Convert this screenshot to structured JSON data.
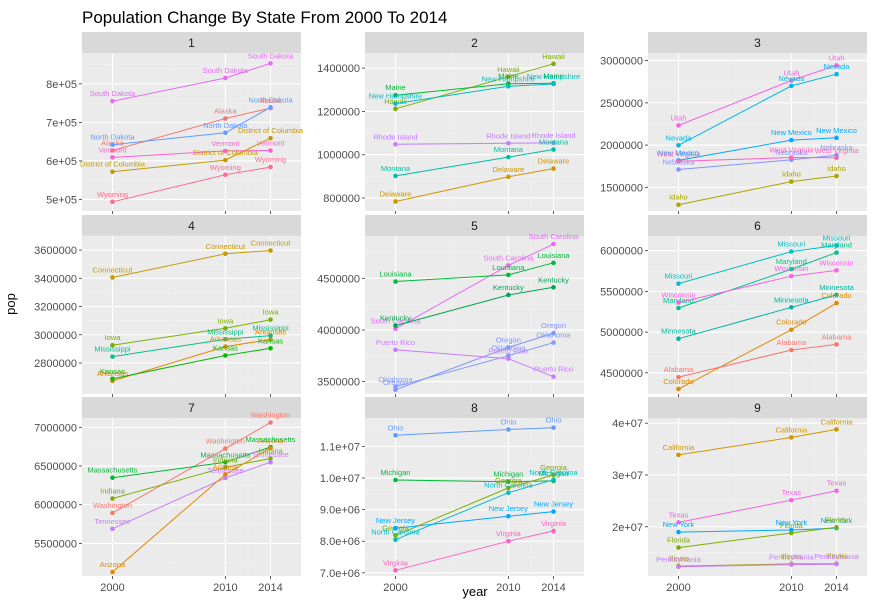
{
  "title": "Population Change By State From 2000 To 2014",
  "xlabel": "year",
  "ylabel": "pop",
  "colors": {
    "panel_bg": "#ebebeb",
    "strip_bg": "#d9d9d9",
    "grid_major": "#ffffff",
    "grid_minor": "#f2f2f2"
  },
  "chart_data": {
    "type": "line",
    "x_ticks": [
      2000,
      2010,
      2014
    ],
    "x_tick_labels": [
      "2000",
      "2010",
      "2014"
    ],
    "panels": [
      {
        "strip": "1",
        "ylim": [
          470000,
          880000
        ],
        "y_ticks": [
          500000,
          600000,
          700000,
          800000
        ],
        "y_tick_labels": [
          "5e+05",
          "6e+05",
          "7e+05",
          "8e+05"
        ],
        "series": [
          {
            "name": "South Dakota",
            "color": "#e76bf3",
            "values": [
              755000,
              815000,
              853000
            ]
          },
          {
            "name": "Alaska",
            "color": "#f8766d",
            "values": [
              627000,
              710000,
              737000
            ]
          },
          {
            "name": "North Dakota",
            "color": "#619cff",
            "values": [
              642000,
              673000,
              739000
            ]
          },
          {
            "name": "Vermont",
            "color": "#fd61d1",
            "values": [
              609000,
              626000,
              627000
            ]
          },
          {
            "name": "District of Columbia",
            "color": "#c49a00",
            "values": [
              572000,
              602000,
              659000
            ]
          },
          {
            "name": "Wyoming",
            "color": "#ff6c91",
            "values": [
              494000,
              564000,
              584000
            ]
          }
        ]
      },
      {
        "strip": "2",
        "ylim": [
          740000,
          1470000
        ],
        "y_ticks": [
          800000,
          1000000,
          1200000,
          1400000
        ],
        "y_tick_labels": [
          "800000",
          "1000000",
          "1200000",
          "1400000"
        ],
        "series": [
          {
            "name": "Hawaii",
            "color": "#7cae00",
            "values": [
              1212000,
              1360000,
              1420000
            ]
          },
          {
            "name": "Maine",
            "color": "#00ba38",
            "values": [
              1275000,
              1328000,
              1330000
            ]
          },
          {
            "name": "New Hampshire",
            "color": "#00bfc4",
            "values": [
              1236000,
              1316000,
              1327000
            ]
          },
          {
            "name": "Rhode Island",
            "color": "#c77cff",
            "values": [
              1048000,
              1053000,
              1055000
            ]
          },
          {
            "name": "Montana",
            "color": "#00bfa5",
            "values": [
              902000,
              989000,
              1024000
            ]
          },
          {
            "name": "Delaware",
            "color": "#cd9600",
            "values": [
              784000,
              898000,
              936000
            ]
          }
        ]
      },
      {
        "strip": "3",
        "ylim": [
          1220000,
          3090000
        ],
        "y_ticks": [
          1500000,
          2000000,
          2500000,
          3000000
        ],
        "y_tick_labels": [
          "1500000",
          "2000000",
          "2500000",
          "3000000"
        ],
        "series": [
          {
            "name": "Utah",
            "color": "#f564e3",
            "values": [
              2233000,
              2764000,
              2943000
            ]
          },
          {
            "name": "Nevada",
            "color": "#00b8e7",
            "values": [
              1998000,
              2701000,
              2839000
            ]
          },
          {
            "name": "New Mexico",
            "color": "#00a9ff",
            "values": [
              1819000,
              2059000,
              2086000
            ]
          },
          {
            "name": "Nebraska",
            "color": "#8494ff",
            "values": [
              1711000,
              1826000,
              1881000
            ]
          },
          {
            "name": "West Virginia",
            "color": "#ff61c3",
            "values": [
              1808000,
              1853000,
              1850000
            ]
          },
          {
            "name": "Idaho",
            "color": "#aba300",
            "values": [
              1294000,
              1568000,
              1634000
            ]
          }
        ]
      },
      {
        "strip": "4",
        "ylim": [
          2580000,
          3700000
        ],
        "y_ticks": [
          2800000,
          3000000,
          3200000,
          3400000,
          3600000
        ],
        "y_tick_labels": [
          "2800000",
          "3000000",
          "3200000",
          "3400000",
          "3600000"
        ],
        "series": [
          {
            "name": "Connecticut",
            "color": "#c49a00",
            "values": [
              3406000,
              3574000,
              3597000
            ]
          },
          {
            "name": "Iowa",
            "color": "#7cae00",
            "values": [
              2926000,
              3046000,
              3107000
            ]
          },
          {
            "name": "Mississippi",
            "color": "#00c08b",
            "values": [
              2845000,
              2968000,
              2994000
            ]
          },
          {
            "name": "Arkansas",
            "color": "#e58700",
            "values": [
              2673000,
              2916000,
              2966000
            ]
          },
          {
            "name": "Kansas",
            "color": "#0cb702",
            "values": [
              2688000,
              2853000,
              2904000
            ]
          }
        ]
      },
      {
        "strip": "5",
        "ylim": [
          3380000,
          4910000
        ],
        "y_ticks": [
          3500000,
          4000000,
          4500000
        ],
        "y_tick_labels": [
          "3500000",
          "4000000",
          "4500000"
        ],
        "series": [
          {
            "name": "South Carolina",
            "color": "#e76bf3",
            "values": [
              4012000,
              4625000,
              4832000
            ]
          },
          {
            "name": "Louisiana",
            "color": "#00ba38",
            "values": [
              4469000,
              4533000,
              4650000
            ]
          },
          {
            "name": "Kentucky",
            "color": "#00a651",
            "values": [
              4042000,
              4339000,
              4413000
            ]
          },
          {
            "name": "Oregon",
            "color": "#8494ff",
            "values": [
              3421000,
              3831000,
              3970000
            ]
          },
          {
            "name": "Oklahoma",
            "color": "#7f9cff",
            "values": [
              3450000,
              3751000,
              3878000
            ]
          },
          {
            "name": "Puerto Rico",
            "color": "#c77cff",
            "values": [
              3808000,
              3722000,
              3548000
            ]
          }
        ]
      },
      {
        "strip": "6",
        "ylim": [
          4240000,
          6180000
        ],
        "y_ticks": [
          4500000,
          5000000,
          5500000,
          6000000
        ],
        "y_tick_labels": [
          "4500000",
          "5000000",
          "5500000",
          "6000000"
        ],
        "series": [
          {
            "name": "Maryland",
            "color": "#00c08b",
            "values": [
              5296000,
              5774000,
              5976000
            ]
          },
          {
            "name": "Missouri",
            "color": "#00bfc4",
            "values": [
              5595000,
              5989000,
              6064000
            ]
          },
          {
            "name": "Wisconsin",
            "color": "#f564e3",
            "values": [
              5364000,
              5687000,
              5758000
            ]
          },
          {
            "name": "Minnesota",
            "color": "#00b4a0",
            "values": [
              4919000,
              5304000,
              5457000
            ]
          },
          {
            "name": "Colorado",
            "color": "#de8c00",
            "values": [
              4302000,
              5029000,
              5356000
            ]
          },
          {
            "name": "Alabama",
            "color": "#f8766d",
            "values": [
              4447000,
              4780000,
              4849000
            ]
          }
        ]
      },
      {
        "strip": "7",
        "ylim": [
          5080000,
          7120000
        ],
        "y_ticks": [
          5500000,
          6000000,
          6500000,
          7000000
        ],
        "y_tick_labels": [
          "5500000",
          "6000000",
          "6500000",
          "7000000"
        ],
        "series": [
          {
            "name": "Washington",
            "color": "#f8766d",
            "values": [
              5894000,
              6725000,
              7062000
            ]
          },
          {
            "name": "Massachusetts",
            "color": "#00ba38",
            "values": [
              6349000,
              6548000,
              6745000
            ]
          },
          {
            "name": "Indiana",
            "color": "#7cae00",
            "values": [
              6080000,
              6484000,
              6597000
            ]
          },
          {
            "name": "Tennessee",
            "color": "#c77cff",
            "values": [
              5689000,
              6346000,
              6549000
            ]
          },
          {
            "name": "Arizona",
            "color": "#e58700",
            "values": [
              5131000,
              6392000,
              6731000
            ]
          }
        ]
      },
      {
        "strip": "8",
        "ylim": [
          6900000,
          11900000
        ],
        "y_ticks": [
          7000000,
          8000000,
          9000000,
          10000000,
          11000000
        ],
        "y_tick_labels": [
          "7.0e+06",
          "8.0e+06",
          "9.0e+06",
          "1.0e+07",
          "1.1e+07"
        ],
        "series": [
          {
            "name": "Ohio",
            "color": "#619cff",
            "values": [
              11353000,
              11537000,
              11594000
            ]
          },
          {
            "name": "Michigan",
            "color": "#00ba38",
            "values": [
              9938000,
              9884000,
              9910000
            ]
          },
          {
            "name": "Georgia",
            "color": "#7cae00",
            "values": [
              8186000,
              9688000,
              10097000
            ]
          },
          {
            "name": "North Carolina",
            "color": "#00bfc4",
            "values": [
              8049000,
              9535000,
              9944000
            ]
          },
          {
            "name": "New Jersey",
            "color": "#00a9ff",
            "values": [
              8414000,
              8792000,
              8938000
            ]
          },
          {
            "name": "Virginia",
            "color": "#ff61c3",
            "values": [
              7079000,
              8001000,
              8326000
            ]
          }
        ]
      },
      {
        "strip": "9",
        "ylim": [
          10500000,
          41000000
        ],
        "y_ticks": [
          20000000,
          30000000,
          40000000
        ],
        "y_tick_labels": [
          "2e+07",
          "3e+07",
          "4e+07"
        ],
        "series": [
          {
            "name": "California",
            "color": "#cd9600",
            "values": [
              33872000,
              37254000,
              38803000
            ]
          },
          {
            "name": "Texas",
            "color": "#f564e3",
            "values": [
              20852000,
              25146000,
              26957000
            ]
          },
          {
            "name": "New York",
            "color": "#00a9ff",
            "values": [
              18976000,
              19378000,
              19746000
            ]
          },
          {
            "name": "Florida",
            "color": "#7cae00",
            "values": [
              15982000,
              18801000,
              19893000
            ]
          },
          {
            "name": "Illinois",
            "color": "#aba300",
            "values": [
              12419000,
              12831000,
              12881000
            ]
          },
          {
            "name": "Pennsylvania",
            "color": "#c77cff",
            "values": [
              12281000,
              12702000,
              12787000
            ]
          }
        ]
      }
    ]
  }
}
